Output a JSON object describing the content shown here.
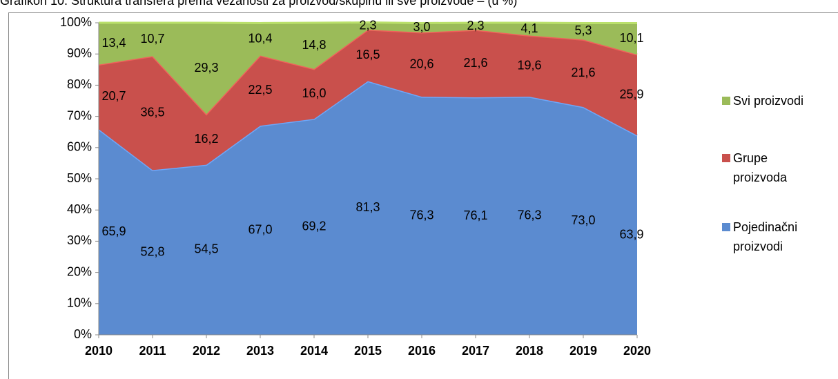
{
  "chart_data": {
    "type": "stacked_area",
    "title": "Grafikon 10. Struktura transfera prema vezanosti za proizvod/skupinu ili sve proizvode – (u %)",
    "categories": [
      "2010",
      "2011",
      "2012",
      "2013",
      "2014",
      "2015",
      "2016",
      "2017",
      "2018",
      "2019",
      "2020"
    ],
    "series": [
      {
        "name": "Pojedinačni proizvodi",
        "color": "#5b8bd0",
        "values": [
          65.9,
          52.8,
          54.5,
          67.0,
          69.2,
          81.3,
          76.3,
          76.1,
          76.3,
          73.0,
          63.9
        ],
        "value_labels": [
          "65,9",
          "52,8",
          "54,5",
          "67,0",
          "69,2",
          "81,3",
          "76,3",
          "76,1",
          "76,3",
          "73,0",
          "63,9"
        ]
      },
      {
        "name": "Grupe proizvoda",
        "color": "#c9504c",
        "values": [
          20.7,
          36.5,
          16.2,
          22.5,
          16.0,
          16.5,
          20.6,
          21.6,
          19.6,
          21.6,
          25.9
        ],
        "value_labels": [
          "20,7",
          "36,5",
          "16,2",
          "22,5",
          "16,0",
          "16,5",
          "20,6",
          "21,6",
          "19,6",
          "21,6",
          "25,9"
        ]
      },
      {
        "name": "Svi proizvodi",
        "color": "#9bbb59",
        "values": [
          13.4,
          10.7,
          29.3,
          10.4,
          14.8,
          2.3,
          3.0,
          2.3,
          4.1,
          5.3,
          10.1
        ],
        "value_labels": [
          "13,4",
          "10,7",
          "29,3",
          "10,4",
          "14,8",
          "2,3",
          "3,0",
          "2,3",
          "4,1",
          "5,3",
          "10,1"
        ]
      }
    ],
    "ylim": [
      0,
      100
    ],
    "yticks": [
      {
        "value": 0,
        "label": "0%"
      },
      {
        "value": 10,
        "label": "10%"
      },
      {
        "value": 20,
        "label": "20%"
      },
      {
        "value": 30,
        "label": "30%"
      },
      {
        "value": 40,
        "label": "40%"
      },
      {
        "value": 50,
        "label": "50%"
      },
      {
        "value": 60,
        "label": "60%"
      },
      {
        "value": 70,
        "label": "70%"
      },
      {
        "value": 80,
        "label": "80%"
      },
      {
        "value": 90,
        "label": "90%"
      },
      {
        "value": 100,
        "label": "100%"
      }
    ],
    "legend": "right"
  }
}
